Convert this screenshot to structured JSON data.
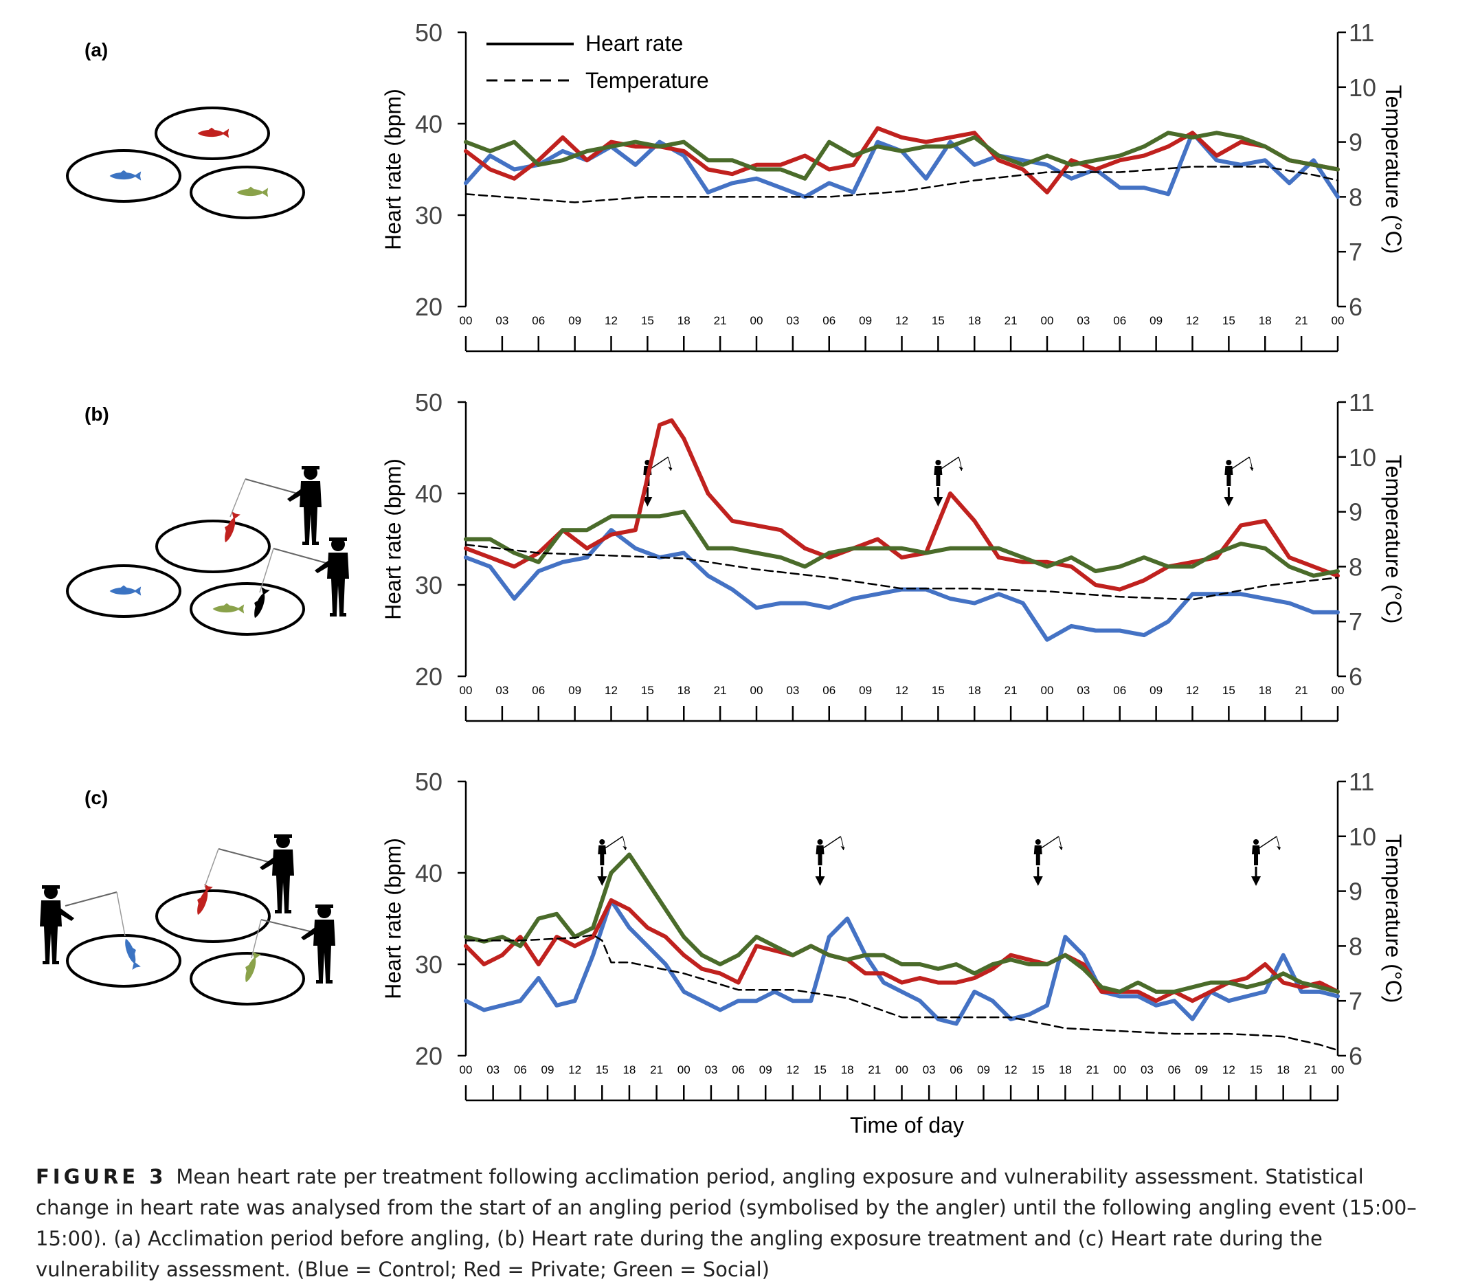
{
  "colors": {
    "control": "#4472c4",
    "private": "#c0211e",
    "social": "#4a6b2a",
    "temperature": "#000000",
    "private_fish": "#c0211e",
    "control_fish": "#3b73c2",
    "social_fish": "#8aa24a"
  },
  "legend": {
    "heart_rate": "Heart rate",
    "temperature": "Temperature"
  },
  "xlabel": "Time of day",
  "caption": {
    "label": "FIGURE 3",
    "text": "Mean heart rate per treatment following acclimation period, angling exposure and vulnerability assessment. Statistical change in heart rate was analysed from the start of an angling period (symbolised by the angler) until the following angling event (15:00–15:00). (a) Acclimation period before angling, (b) Heart rate during the angling exposure treatment and (c) Heart rate during the vulnerability assessment. (Blue = Control; Red = Private; Green = Social)"
  },
  "chart_data": [
    {
      "type": "line",
      "panel": "(a)",
      "ylabel": "Heart rate (bpm)",
      "y2label": "Temperature (°C)",
      "ylim": [
        20,
        50
      ],
      "yticks": [
        20,
        30,
        40,
        50
      ],
      "y2lim": [
        6,
        11
      ],
      "y2ticks": [
        6,
        7,
        8,
        9,
        10,
        11
      ],
      "x_ticks": [
        "00",
        "03",
        "06",
        "09",
        "12",
        "15",
        "18",
        "21",
        "00",
        "03",
        "06",
        "09",
        "12",
        "15",
        "18",
        "21",
        "00",
        "03",
        "06",
        "09",
        "12",
        "15",
        "18",
        "21",
        "00"
      ],
      "x_hours_range": [
        0,
        72
      ],
      "angler_hours": [],
      "series": [
        {
          "key": "control",
          "x": [
            0,
            2,
            4,
            6,
            8,
            10,
            12,
            14,
            16,
            18,
            20,
            22,
            24,
            26,
            28,
            30,
            32,
            34,
            36,
            38,
            40,
            42,
            44,
            46,
            48,
            50,
            52,
            54,
            56,
            58,
            60,
            62,
            64,
            66,
            68,
            70,
            72
          ],
          "values": [
            33.5,
            36.5,
            35,
            35.5,
            37,
            36,
            37.5,
            35.5,
            38,
            36.5,
            32.5,
            33.5,
            34,
            33,
            32,
            33.5,
            32.5,
            38,
            37,
            34,
            38,
            35.5,
            36.5,
            36,
            35.5,
            34,
            35,
            33,
            33,
            32.3,
            39,
            36,
            35.5,
            36,
            33.5,
            36,
            32
          ]
        },
        {
          "key": "private",
          "x": [
            0,
            2,
            4,
            6,
            8,
            10,
            12,
            14,
            16,
            18,
            20,
            22,
            24,
            26,
            28,
            30,
            32,
            34,
            36,
            38,
            40,
            42,
            44,
            46,
            48,
            50,
            52,
            54,
            56,
            58,
            60,
            62,
            64,
            66,
            68,
            70,
            72
          ],
          "values": [
            37,
            35,
            34,
            36,
            38.5,
            36,
            38,
            37.5,
            37.5,
            37,
            35,
            34.5,
            35.5,
            35.5,
            36.5,
            35,
            35.5,
            39.5,
            38.5,
            38,
            38.5,
            39,
            36,
            35,
            32.5,
            36,
            35,
            36,
            36.5,
            37.5,
            39,
            36.5,
            38,
            37.5,
            36,
            35.5,
            35
          ]
        },
        {
          "key": "social",
          "x": [
            0,
            2,
            4,
            6,
            8,
            10,
            12,
            14,
            16,
            18,
            20,
            22,
            24,
            26,
            28,
            30,
            32,
            34,
            36,
            38,
            40,
            42,
            44,
            46,
            48,
            50,
            52,
            54,
            56,
            58,
            60,
            62,
            64,
            66,
            68,
            70,
            72
          ],
          "values": [
            38,
            37,
            38,
            35.5,
            36,
            37,
            37.5,
            38,
            37.5,
            38,
            36,
            36,
            35,
            35,
            34,
            38,
            36.5,
            37.5,
            37,
            37.5,
            37.5,
            38.5,
            36.5,
            35.5,
            36.5,
            35.5,
            36,
            36.5,
            37.5,
            39,
            38.5,
            39,
            38.5,
            37.5,
            36,
            35.5,
            35
          ]
        },
        {
          "key": "temperature",
          "axis": "y2",
          "x": [
            0,
            6,
            9,
            12,
            15,
            18,
            24,
            30,
            36,
            42,
            48,
            54,
            60,
            66,
            70,
            72
          ],
          "values": [
            8.05,
            7.95,
            7.9,
            7.95,
            8.0,
            8.0,
            8.0,
            8.0,
            8.1,
            8.3,
            8.45,
            8.45,
            8.55,
            8.55,
            8.4,
            8.3
          ]
        }
      ]
    },
    {
      "type": "line",
      "panel": "(b)",
      "ylabel": "Heart rate (bpm)",
      "y2label": "Temperature (°C)",
      "ylim": [
        20,
        50
      ],
      "yticks": [
        20,
        30,
        40,
        50
      ],
      "y2lim": [
        6,
        11
      ],
      "y2ticks": [
        6,
        7,
        8,
        9,
        10,
        11
      ],
      "x_ticks": [
        "00",
        "03",
        "06",
        "09",
        "12",
        "15",
        "18",
        "21",
        "00",
        "03",
        "06",
        "09",
        "12",
        "15",
        "18",
        "21",
        "00",
        "03",
        "06",
        "09",
        "12",
        "15",
        "18",
        "21",
        "00"
      ],
      "x_hours_range": [
        0,
        72
      ],
      "angler_hours": [
        15,
        39,
        63
      ],
      "series": [
        {
          "key": "control",
          "x": [
            0,
            2,
            4,
            6,
            8,
            10,
            12,
            14,
            16,
            18,
            20,
            22,
            24,
            26,
            28,
            30,
            32,
            34,
            36,
            38,
            40,
            42,
            44,
            46,
            48,
            50,
            52,
            54,
            56,
            58,
            60,
            62,
            64,
            66,
            68,
            70,
            72
          ],
          "values": [
            33,
            32,
            28.5,
            31.5,
            32.5,
            33,
            36,
            34,
            33,
            33.5,
            31,
            29.5,
            27.5,
            28,
            28,
            27.5,
            28.5,
            29,
            29.5,
            29.5,
            28.5,
            28,
            29,
            28,
            24,
            25.5,
            25,
            25,
            24.5,
            26,
            29,
            29,
            29,
            28.5,
            28,
            27,
            27
          ]
        },
        {
          "key": "private",
          "x": [
            0,
            2,
            4,
            6,
            8,
            10,
            12,
            14,
            16,
            17,
            18,
            20,
            22,
            24,
            26,
            28,
            30,
            32,
            34,
            36,
            38,
            40,
            42,
            44,
            46,
            48,
            50,
            52,
            54,
            56,
            58,
            60,
            62,
            64,
            66,
            68,
            70,
            72
          ],
          "values": [
            34,
            33,
            32,
            33.5,
            36,
            34,
            35.5,
            36,
            47.5,
            48,
            46,
            40,
            37,
            36.5,
            36,
            34,
            33,
            34,
            35,
            33,
            33.5,
            40,
            37,
            33,
            32.5,
            32.5,
            32,
            30,
            29.5,
            30.5,
            32,
            32.5,
            33,
            36.5,
            37,
            33,
            32,
            31
          ]
        },
        {
          "key": "social",
          "x": [
            0,
            2,
            4,
            6,
            8,
            10,
            12,
            14,
            16,
            18,
            20,
            22,
            24,
            26,
            28,
            30,
            32,
            34,
            36,
            38,
            40,
            42,
            44,
            46,
            48,
            50,
            52,
            54,
            56,
            58,
            60,
            62,
            64,
            66,
            68,
            70,
            72
          ],
          "values": [
            35,
            35,
            33.5,
            32.5,
            36,
            36,
            37.5,
            37.5,
            37.5,
            38,
            34,
            34,
            33.5,
            33,
            32,
            33.5,
            34,
            34,
            34,
            33.5,
            34,
            34,
            34,
            33,
            32,
            33,
            31.5,
            32,
            33,
            32,
            32,
            33.5,
            34.5,
            34,
            32,
            31,
            31.5
          ]
        },
        {
          "key": "temperature",
          "axis": "y2",
          "x": [
            0,
            6,
            12,
            18,
            24,
            30,
            36,
            42,
            48,
            54,
            60,
            66,
            72
          ],
          "values": [
            8.4,
            8.25,
            8.2,
            8.15,
            7.95,
            7.8,
            7.6,
            7.6,
            7.55,
            7.45,
            7.4,
            7.65,
            7.8
          ]
        }
      ]
    },
    {
      "type": "line",
      "panel": "(c)",
      "ylabel": "Heart rate (bpm)",
      "y2label": "Temperature (°C)",
      "ylim": [
        20,
        50
      ],
      "yticks": [
        20,
        30,
        40,
        50
      ],
      "y2lim": [
        6,
        11
      ],
      "y2ticks": [
        6,
        7,
        8,
        9,
        10,
        11
      ],
      "x_ticks": [
        "00",
        "03",
        "06",
        "09",
        "12",
        "15",
        "18",
        "21",
        "00",
        "03",
        "06",
        "09",
        "12",
        "15",
        "18",
        "21",
        "00",
        "03",
        "06",
        "09",
        "12",
        "15",
        "18",
        "21",
        "00",
        "03",
        "06",
        "09",
        "12",
        "15",
        "18",
        "21",
        "00"
      ],
      "x_hours_range": [
        0,
        96
      ],
      "angler_hours": [
        15,
        39,
        63,
        87
      ],
      "series": [
        {
          "key": "control",
          "x": [
            0,
            2,
            4,
            6,
            8,
            10,
            12,
            14,
            16,
            18,
            20,
            22,
            24,
            26,
            28,
            30,
            32,
            34,
            36,
            38,
            40,
            42,
            44,
            46,
            48,
            50,
            52,
            54,
            56,
            58,
            60,
            62,
            64,
            66,
            68,
            70,
            72,
            74,
            76,
            78,
            80,
            82,
            84,
            86,
            88,
            90,
            92,
            94,
            96
          ],
          "values": [
            26,
            25,
            25.5,
            26,
            28.5,
            25.5,
            26,
            31,
            37,
            34,
            32,
            30,
            27,
            26,
            25,
            26,
            26,
            27,
            26,
            26,
            33,
            35,
            31,
            28,
            27,
            26,
            24,
            23.5,
            27,
            26,
            24,
            24.5,
            25.5,
            33,
            31,
            27,
            26.5,
            26.5,
            25.5,
            26,
            24,
            27,
            26,
            26.5,
            27,
            31,
            27,
            27,
            26.5
          ]
        },
        {
          "key": "private",
          "x": [
            0,
            2,
            4,
            6,
            8,
            10,
            12,
            14,
            16,
            18,
            20,
            22,
            24,
            26,
            28,
            30,
            32,
            34,
            36,
            38,
            40,
            42,
            44,
            46,
            48,
            50,
            52,
            54,
            56,
            58,
            60,
            62,
            64,
            66,
            68,
            70,
            72,
            74,
            76,
            78,
            80,
            82,
            84,
            86,
            88,
            90,
            92,
            94,
            96
          ],
          "values": [
            32,
            30,
            31,
            33,
            30,
            33,
            32,
            33,
            37,
            36,
            34,
            33,
            31,
            29.5,
            29,
            28,
            32,
            31.5,
            31,
            32,
            31,
            30.5,
            29,
            29,
            28,
            28.5,
            28,
            28,
            28.5,
            29.5,
            31,
            30.5,
            30,
            31,
            30,
            27,
            27,
            27,
            26,
            27,
            26,
            27,
            28,
            28.5,
            30,
            28,
            27.5,
            28,
            27
          ]
        },
        {
          "key": "social",
          "x": [
            0,
            2,
            4,
            6,
            8,
            10,
            12,
            14,
            16,
            18,
            20,
            22,
            24,
            26,
            28,
            30,
            32,
            34,
            36,
            38,
            40,
            42,
            44,
            46,
            48,
            50,
            52,
            54,
            56,
            58,
            60,
            62,
            64,
            66,
            68,
            70,
            72,
            74,
            76,
            78,
            80,
            82,
            84,
            86,
            88,
            90,
            92,
            94,
            96
          ],
          "values": [
            33,
            32.5,
            33,
            32,
            35,
            35.5,
            33,
            34,
            40,
            42,
            39,
            36,
            33,
            31,
            30,
            31,
            33,
            32,
            31,
            32,
            31,
            30.5,
            31,
            31,
            30,
            30,
            29.5,
            30,
            29,
            30,
            30.5,
            30,
            30,
            31,
            29.5,
            27.5,
            27,
            28,
            27,
            27,
            27.5,
            28,
            28,
            27.5,
            28,
            29,
            28,
            27.5,
            27
          ]
        },
        {
          "key": "temperature",
          "axis": "y2",
          "x": [
            0,
            6,
            12,
            14,
            15,
            16,
            18,
            24,
            30,
            36,
            42,
            48,
            54,
            60,
            66,
            72,
            78,
            84,
            90,
            94,
            96
          ],
          "values": [
            8.1,
            8.1,
            8.15,
            8.2,
            8.1,
            7.7,
            7.7,
            7.5,
            7.2,
            7.2,
            7.05,
            6.7,
            6.7,
            6.7,
            6.5,
            6.45,
            6.4,
            6.4,
            6.35,
            6.2,
            6.1
          ]
        }
      ]
    }
  ]
}
